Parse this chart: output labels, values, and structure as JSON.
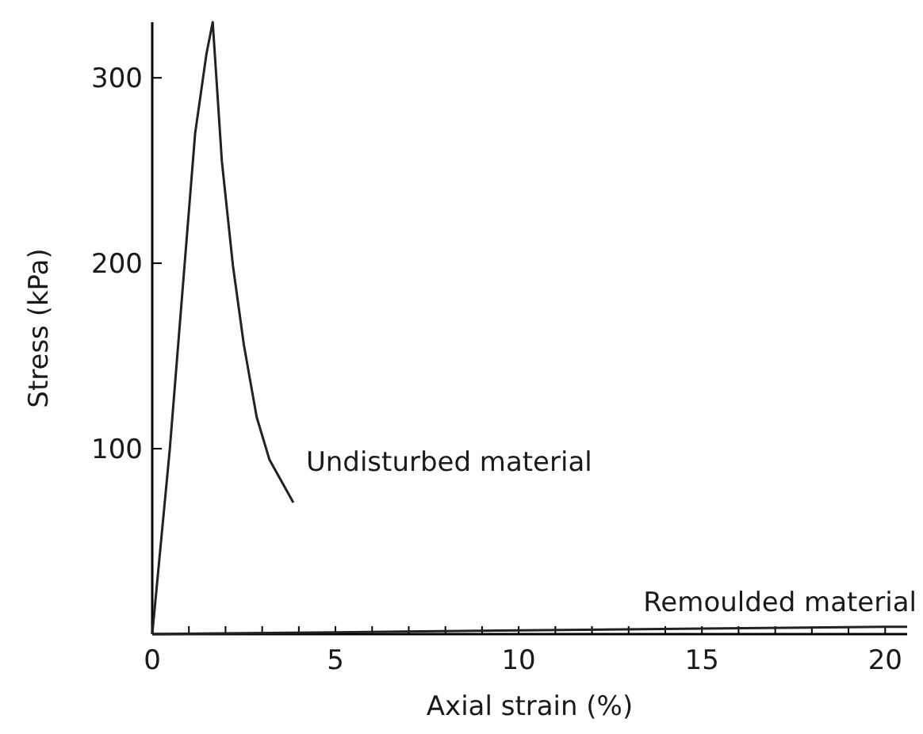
{
  "chart_data": {
    "type": "line",
    "xlabel": "Axial strain (%)",
    "ylabel": "Stress (kPa)",
    "xlim": [
      0,
      20.6
    ],
    "ylim": [
      0,
      330
    ],
    "xticks": [
      0,
      {
        "value": 1,
        "label": null
      },
      {
        "value": 2,
        "label": null
      },
      {
        "value": 3,
        "label": null
      },
      {
        "value": 4,
        "label": null
      },
      5,
      {
        "value": 6,
        "label": null
      },
      {
        "value": 7,
        "label": null
      },
      {
        "value": 8,
        "label": null
      },
      {
        "value": 9,
        "label": null
      },
      10,
      {
        "value": 11,
        "label": null
      },
      {
        "value": 12,
        "label": null
      },
      {
        "value": 13,
        "label": null
      },
      {
        "value": 14,
        "label": null
      },
      15,
      {
        "value": 16,
        "label": null
      },
      {
        "value": 17,
        "label": null
      },
      {
        "value": 18,
        "label": null
      },
      {
        "value": 19,
        "label": null
      },
      20
    ],
    "yticks": [
      100,
      200,
      300
    ],
    "grid": false,
    "legend": false,
    "marker": "none",
    "line_style": "solid",
    "series": [
      {
        "name": "Undisturbed material",
        "color": "#222222",
        "x": [
          0,
          0.48,
          1.17,
          1.48,
          1.65,
          1.9,
          2.2,
          2.5,
          2.85,
          3.2,
          3.85
        ],
        "values": [
          0,
          100,
          270,
          313,
          330,
          255,
          199,
          156,
          117,
          94,
          71
        ]
      },
      {
        "name": "Remoulded material",
        "color": "#222222",
        "x": [
          0,
          5,
          10,
          15,
          20,
          20.6
        ],
        "values": [
          0,
          1,
          2,
          3,
          4,
          4
        ]
      }
    ]
  }
}
